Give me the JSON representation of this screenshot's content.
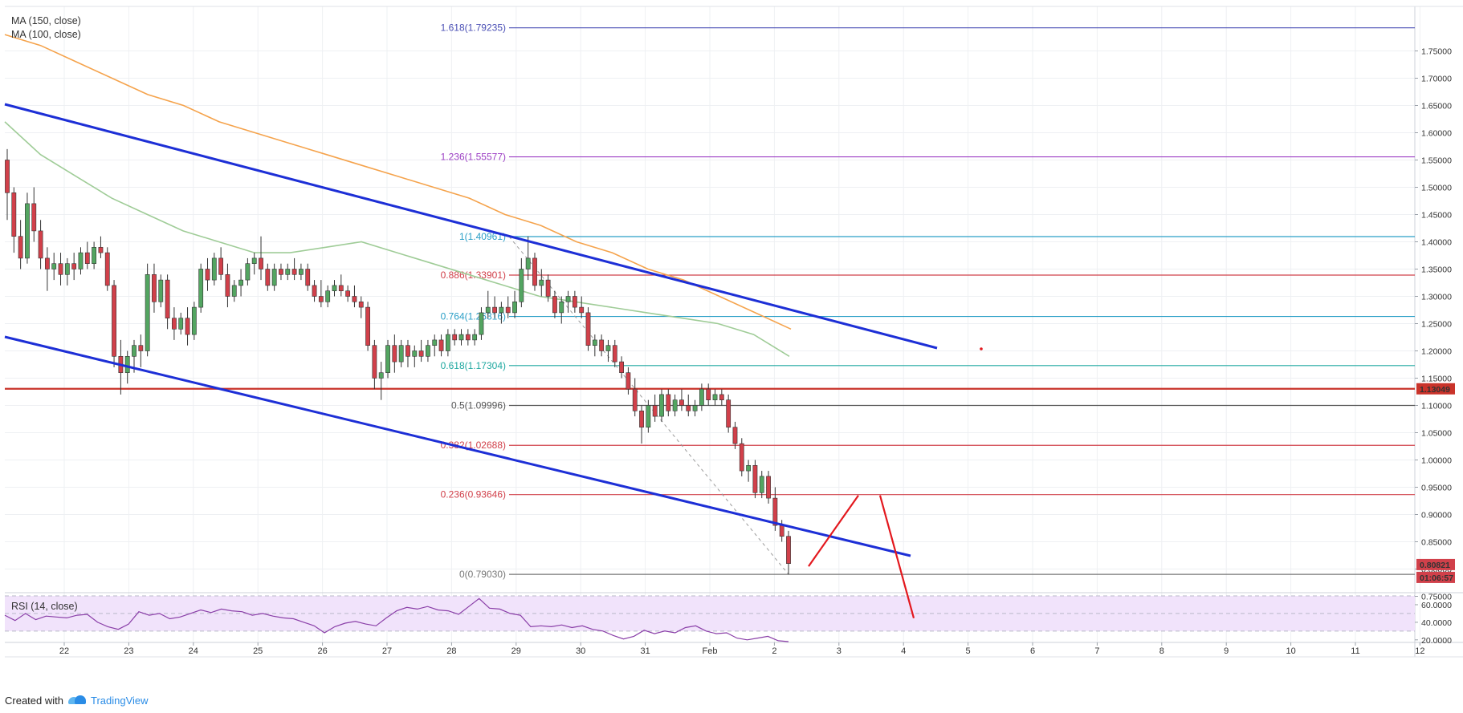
{
  "legend": {
    "ma150": "MA (150, close)",
    "ma100": "MA (100, close)",
    "rsi": "RSI (14, close)"
  },
  "price_badges": {
    "level": "1.13049",
    "last": "0.80821",
    "timer": "01:06:57"
  },
  "footer": {
    "created_with": "Created with",
    "brand": "TradingView"
  },
  "colors": {
    "up": "#53a561",
    "down": "#d1404a",
    "trend": "#1d2fd6",
    "ma150": "#f5a34c",
    "ma100": "#9fcc97",
    "rsi_line": "#8a3fa8",
    "rsi_band": "#f1e3fb",
    "level": "#c9332a",
    "projection": "#e3181e"
  },
  "chart_data": {
    "type": "candlestick",
    "price_axis": {
      "range": [
        0.715,
        1.79
      ],
      "ticks": [
        "0.75000",
        "0.80000",
        "0.85000",
        "0.90000",
        "0.95000",
        "1.00000",
        "1.05000",
        "1.10000",
        "1.15000",
        "1.20000",
        "1.25000",
        "1.30000",
        "1.35000",
        "1.40000",
        "1.45000",
        "1.50000",
        "1.55000",
        "1.60000",
        "1.65000",
        "1.70000",
        "1.75000"
      ]
    },
    "rsi_axis": {
      "range": [
        18,
        70
      ],
      "ticks": [
        "20.0000",
        "40.0000",
        "60.0000"
      ],
      "band": [
        30,
        70
      ]
    },
    "time_axis": {
      "labels": [
        "22",
        "23",
        "24",
        "25",
        "26",
        "27",
        "28",
        "29",
        "30",
        "31",
        "Feb",
        "2",
        "3",
        "4",
        "5",
        "6",
        "7",
        "8",
        "9",
        "10",
        "11",
        "12"
      ]
    },
    "fib_levels": [
      {
        "label": "1.618(1.79235)",
        "value": 1.79235,
        "color": "#4a4fb5"
      },
      {
        "label": "1.236(1.55577)",
        "value": 1.55577,
        "color": "#9c3fc4"
      },
      {
        "label": "1(1.40961)",
        "value": 1.40961,
        "color": "#2b9fc7"
      },
      {
        "label": "0.886(1.33901)",
        "value": 1.33901,
        "color": "#d1404a"
      },
      {
        "label": "0.764(1.26316)",
        "value": 1.26316,
        "color": "#2b9fc7"
      },
      {
        "label": "0.618(1.17304)",
        "value": 1.17304,
        "color": "#1fa8a0"
      },
      {
        "label": "0.5(1.09996)",
        "value": 1.09996,
        "color": "#555555"
      },
      {
        "label": "0.382(1.02688)",
        "value": 1.02688,
        "color": "#d1404a"
      },
      {
        "label": "0.236(0.93646)",
        "value": 0.93646,
        "color": "#d1404a"
      },
      {
        "label": "0(0.79030)",
        "value": 0.7903,
        "color": "#777777"
      }
    ],
    "horizontal_level": 1.13049,
    "last_price": 0.80821,
    "candles_ohlc": [
      [
        1.55,
        1.57,
        1.44,
        1.49
      ],
      [
        1.49,
        1.5,
        1.38,
        1.41
      ],
      [
        1.41,
        1.44,
        1.35,
        1.37
      ],
      [
        1.37,
        1.49,
        1.36,
        1.47
      ],
      [
        1.47,
        1.5,
        1.4,
        1.42
      ],
      [
        1.42,
        1.44,
        1.35,
        1.37
      ],
      [
        1.37,
        1.39,
        1.31,
        1.35
      ],
      [
        1.35,
        1.38,
        1.33,
        1.36
      ],
      [
        1.36,
        1.38,
        1.32,
        1.34
      ],
      [
        1.34,
        1.37,
        1.32,
        1.36
      ],
      [
        1.36,
        1.38,
        1.33,
        1.35
      ],
      [
        1.35,
        1.39,
        1.34,
        1.38
      ],
      [
        1.38,
        1.4,
        1.35,
        1.36
      ],
      [
        1.36,
        1.4,
        1.35,
        1.39
      ],
      [
        1.39,
        1.41,
        1.37,
        1.38
      ],
      [
        1.38,
        1.39,
        1.31,
        1.32
      ],
      [
        1.32,
        1.33,
        1.17,
        1.19
      ],
      [
        1.19,
        1.22,
        1.12,
        1.16
      ],
      [
        1.16,
        1.2,
        1.14,
        1.19
      ],
      [
        1.19,
        1.22,
        1.16,
        1.21
      ],
      [
        1.21,
        1.23,
        1.17,
        1.2
      ],
      [
        1.2,
        1.36,
        1.19,
        1.34
      ],
      [
        1.34,
        1.36,
        1.27,
        1.29
      ],
      [
        1.29,
        1.34,
        1.28,
        1.33
      ],
      [
        1.33,
        1.34,
        1.24,
        1.26
      ],
      [
        1.26,
        1.28,
        1.22,
        1.24
      ],
      [
        1.24,
        1.27,
        1.23,
        1.26
      ],
      [
        1.26,
        1.28,
        1.21,
        1.23
      ],
      [
        1.23,
        1.29,
        1.22,
        1.28
      ],
      [
        1.28,
        1.36,
        1.27,
        1.35
      ],
      [
        1.35,
        1.37,
        1.31,
        1.33
      ],
      [
        1.33,
        1.38,
        1.32,
        1.37
      ],
      [
        1.37,
        1.39,
        1.33,
        1.34
      ],
      [
        1.34,
        1.36,
        1.28,
        1.3
      ],
      [
        1.3,
        1.33,
        1.29,
        1.32
      ],
      [
        1.32,
        1.35,
        1.3,
        1.33
      ],
      [
        1.33,
        1.37,
        1.32,
        1.36
      ],
      [
        1.36,
        1.38,
        1.34,
        1.37
      ],
      [
        1.37,
        1.41,
        1.33,
        1.35
      ],
      [
        1.35,
        1.36,
        1.31,
        1.32
      ],
      [
        1.32,
        1.36,
        1.31,
        1.35
      ],
      [
        1.35,
        1.36,
        1.33,
        1.34
      ],
      [
        1.34,
        1.36,
        1.33,
        1.35
      ],
      [
        1.35,
        1.37,
        1.33,
        1.34
      ],
      [
        1.34,
        1.36,
        1.33,
        1.35
      ],
      [
        1.35,
        1.36,
        1.31,
        1.32
      ],
      [
        1.32,
        1.33,
        1.29,
        1.3
      ],
      [
        1.3,
        1.33,
        1.28,
        1.29
      ],
      [
        1.29,
        1.32,
        1.28,
        1.31
      ],
      [
        1.31,
        1.33,
        1.3,
        1.32
      ],
      [
        1.32,
        1.34,
        1.3,
        1.31
      ],
      [
        1.31,
        1.32,
        1.29,
        1.3
      ],
      [
        1.3,
        1.32,
        1.28,
        1.29
      ],
      [
        1.29,
        1.3,
        1.26,
        1.28
      ],
      [
        1.28,
        1.29,
        1.2,
        1.21
      ],
      [
        1.21,
        1.22,
        1.13,
        1.15
      ],
      [
        1.15,
        1.18,
        1.11,
        1.16
      ],
      [
        1.16,
        1.22,
        1.15,
        1.21
      ],
      [
        1.21,
        1.23,
        1.16,
        1.18
      ],
      [
        1.18,
        1.22,
        1.17,
        1.21
      ],
      [
        1.21,
        1.22,
        1.17,
        1.19
      ],
      [
        1.19,
        1.21,
        1.17,
        1.2
      ],
      [
        1.2,
        1.22,
        1.18,
        1.19
      ],
      [
        1.19,
        1.22,
        1.18,
        1.21
      ],
      [
        1.21,
        1.23,
        1.19,
        1.22
      ],
      [
        1.22,
        1.23,
        1.19,
        1.2
      ],
      [
        1.2,
        1.24,
        1.19,
        1.23
      ],
      [
        1.23,
        1.24,
        1.21,
        1.22
      ],
      [
        1.22,
        1.24,
        1.21,
        1.23
      ],
      [
        1.23,
        1.24,
        1.21,
        1.22
      ],
      [
        1.22,
        1.24,
        1.21,
        1.23
      ],
      [
        1.23,
        1.28,
        1.22,
        1.27
      ],
      [
        1.27,
        1.31,
        1.26,
        1.28
      ],
      [
        1.28,
        1.3,
        1.26,
        1.27
      ],
      [
        1.27,
        1.29,
        1.25,
        1.28
      ],
      [
        1.28,
        1.3,
        1.26,
        1.27
      ],
      [
        1.27,
        1.31,
        1.26,
        1.29
      ],
      [
        1.29,
        1.37,
        1.28,
        1.35
      ],
      [
        1.35,
        1.41,
        1.33,
        1.37
      ],
      [
        1.37,
        1.38,
        1.31,
        1.32
      ],
      [
        1.32,
        1.35,
        1.3,
        1.33
      ],
      [
        1.33,
        1.34,
        1.29,
        1.3
      ],
      [
        1.3,
        1.31,
        1.26,
        1.27
      ],
      [
        1.27,
        1.3,
        1.25,
        1.29
      ],
      [
        1.29,
        1.31,
        1.27,
        1.3
      ],
      [
        1.3,
        1.31,
        1.27,
        1.28
      ],
      [
        1.28,
        1.3,
        1.26,
        1.27
      ],
      [
        1.27,
        1.28,
        1.2,
        1.21
      ],
      [
        1.21,
        1.23,
        1.19,
        1.22
      ],
      [
        1.22,
        1.23,
        1.19,
        1.2
      ],
      [
        1.2,
        1.22,
        1.18,
        1.21
      ],
      [
        1.21,
        1.22,
        1.17,
        1.18
      ],
      [
        1.18,
        1.19,
        1.15,
        1.16
      ],
      [
        1.16,
        1.17,
        1.12,
        1.13
      ],
      [
        1.13,
        1.15,
        1.08,
        1.09
      ],
      [
        1.09,
        1.1,
        1.03,
        1.06
      ],
      [
        1.06,
        1.11,
        1.05,
        1.1
      ],
      [
        1.1,
        1.12,
        1.07,
        1.08
      ],
      [
        1.08,
        1.13,
        1.07,
        1.12
      ],
      [
        1.12,
        1.13,
        1.08,
        1.09
      ],
      [
        1.09,
        1.12,
        1.08,
        1.11
      ],
      [
        1.11,
        1.13,
        1.09,
        1.1
      ],
      [
        1.1,
        1.12,
        1.08,
        1.09
      ],
      [
        1.09,
        1.11,
        1.08,
        1.1
      ],
      [
        1.1,
        1.14,
        1.09,
        1.13
      ],
      [
        1.13,
        1.14,
        1.1,
        1.11
      ],
      [
        1.11,
        1.13,
        1.1,
        1.12
      ],
      [
        1.12,
        1.13,
        1.1,
        1.11
      ],
      [
        1.11,
        1.12,
        1.05,
        1.06
      ],
      [
        1.06,
        1.07,
        1.02,
        1.03
      ],
      [
        1.03,
        1.04,
        0.97,
        0.98
      ],
      [
        0.98,
        1.0,
        0.96,
        0.99
      ],
      [
        0.99,
        1.0,
        0.93,
        0.94
      ],
      [
        0.94,
        0.98,
        0.93,
        0.97
      ],
      [
        0.97,
        0.98,
        0.92,
        0.93
      ],
      [
        0.93,
        0.95,
        0.87,
        0.88
      ],
      [
        0.88,
        0.89,
        0.85,
        0.86
      ],
      [
        0.86,
        0.87,
        0.79,
        0.81
      ]
    ],
    "ma150": [
      1.78,
      1.76,
      1.73,
      1.7,
      1.67,
      1.65,
      1.62,
      1.6,
      1.58,
      1.56,
      1.54,
      1.52,
      1.5,
      1.48,
      1.45,
      1.43,
      1.4,
      1.38,
      1.35,
      1.33,
      1.3,
      1.27,
      1.24
    ],
    "ma100": [
      1.62,
      1.56,
      1.52,
      1.48,
      1.45,
      1.42,
      1.4,
      1.38,
      1.38,
      1.39,
      1.4,
      1.38,
      1.36,
      1.34,
      1.32,
      1.3,
      1.29,
      1.28,
      1.27,
      1.26,
      1.25,
      1.23,
      1.19
    ],
    "rsi": [
      48,
      42,
      50,
      43,
      47,
      46,
      45,
      48,
      49,
      40,
      35,
      32,
      38,
      52,
      48,
      50,
      44,
      46,
      50,
      54,
      51,
      55,
      53,
      52,
      48,
      50,
      47,
      45,
      44,
      40,
      36,
      28,
      35,
      39,
      41,
      38,
      36,
      45,
      53,
      57,
      55,
      58,
      54,
      53,
      49,
      58,
      67,
      56,
      55,
      50,
      48,
      35,
      36,
      35,
      37,
      34,
      36,
      32,
      30,
      25,
      21,
      24,
      31,
      27,
      30,
      28,
      34,
      36,
      30,
      27,
      28,
      22,
      20,
      22,
      24,
      19,
      18
    ],
    "projection": [
      [
        0.805,
        0.935
      ],
      [
        0.935,
        0.71
      ]
    ]
  }
}
